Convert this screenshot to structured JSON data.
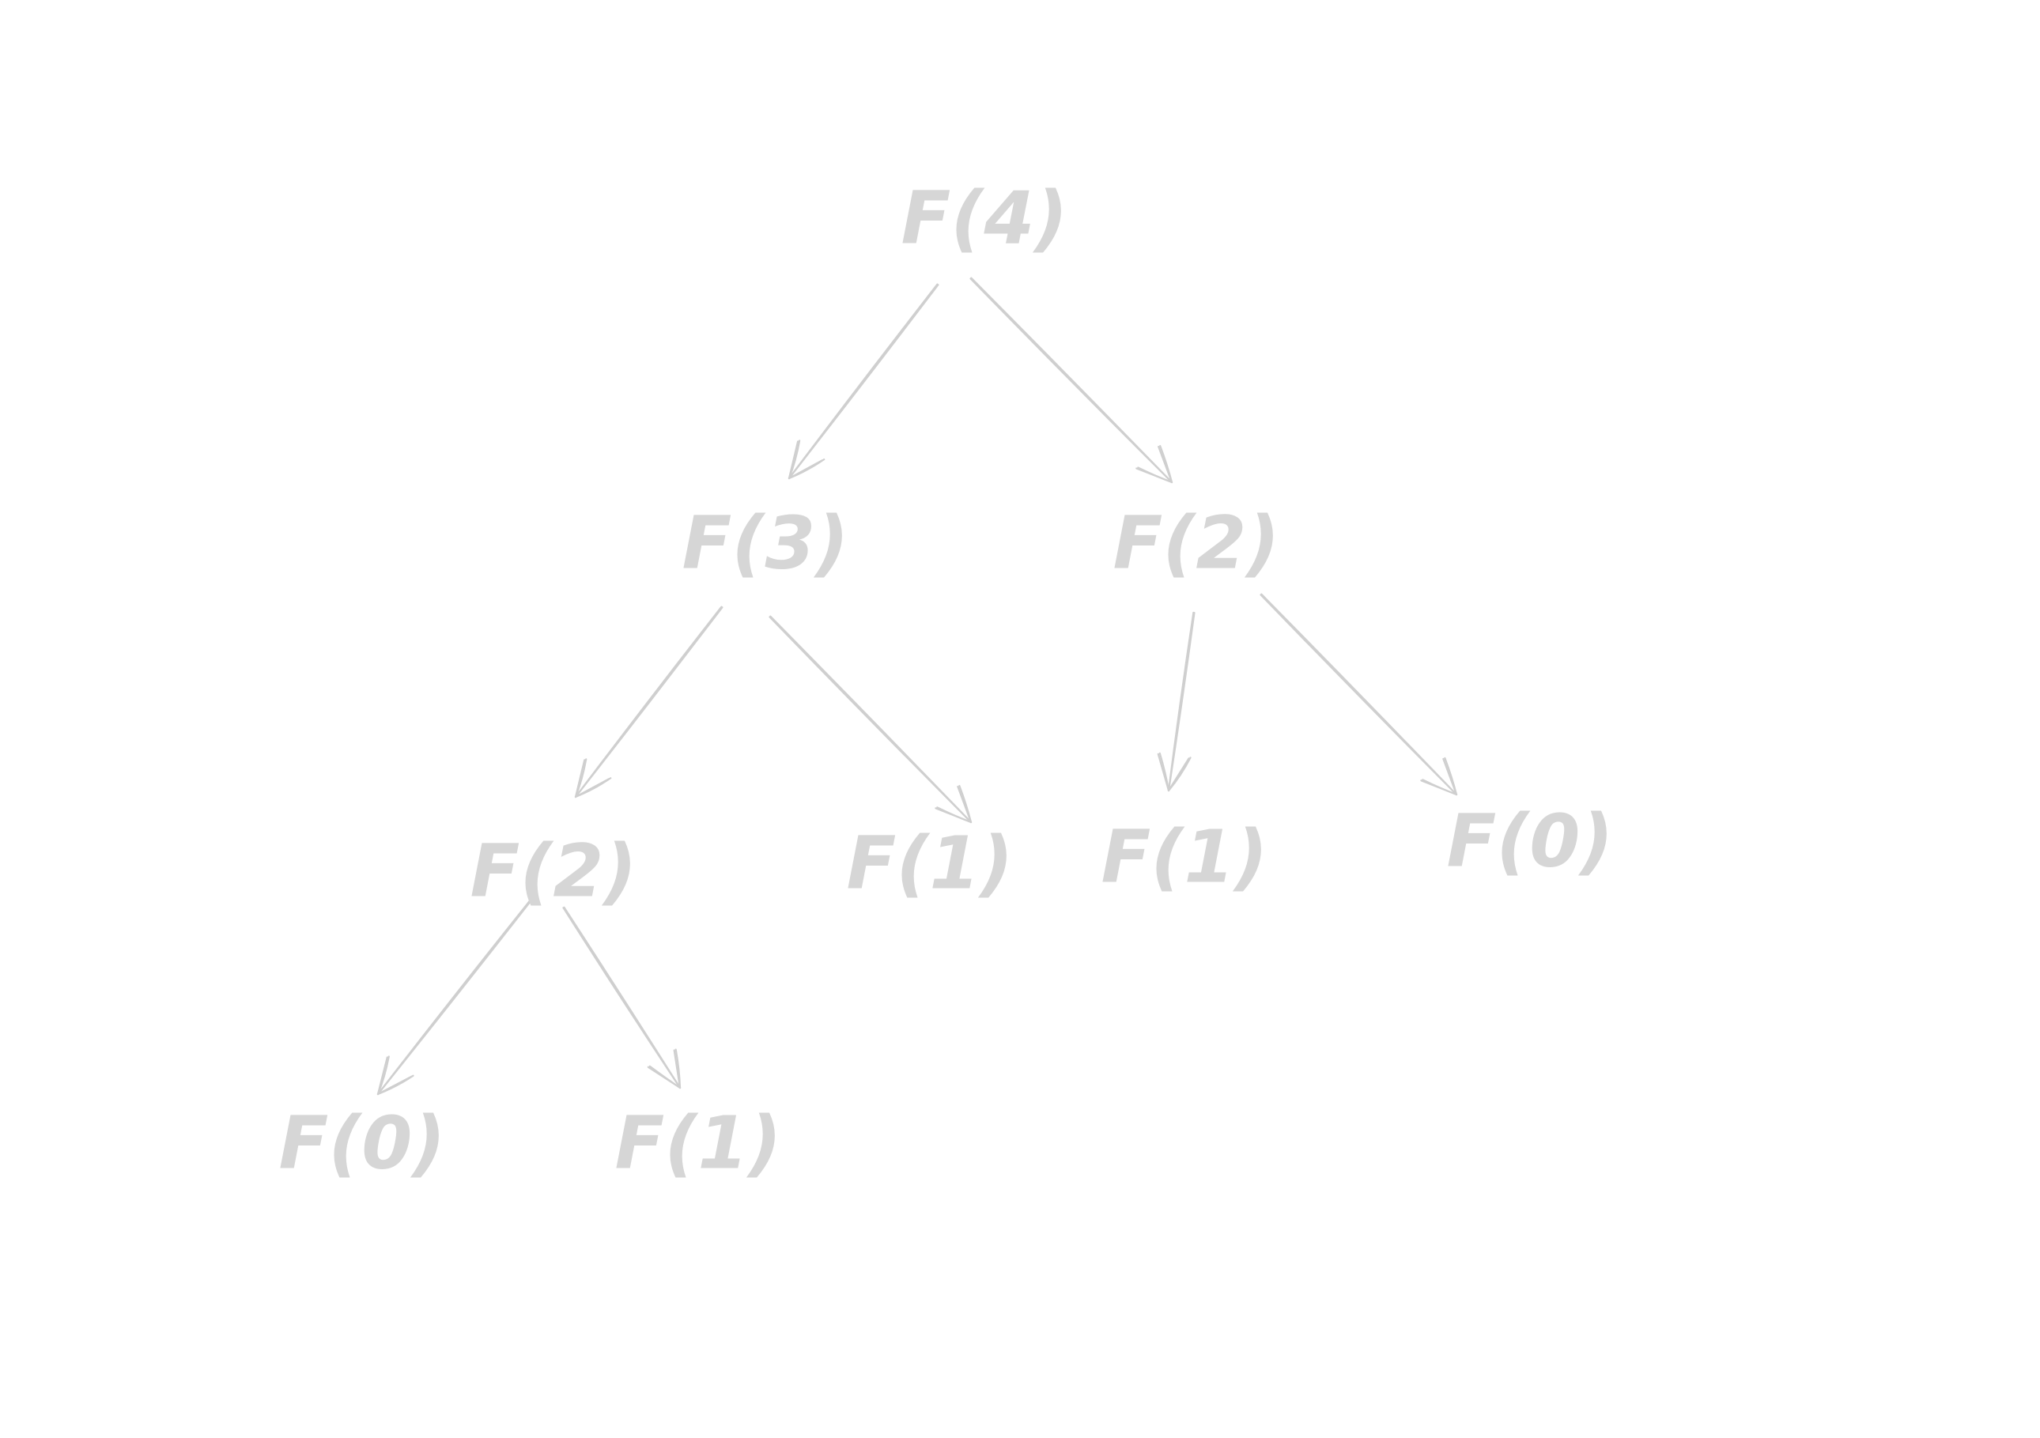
{
  "diagram": {
    "type": "tree",
    "nodes": [
      {
        "id": "n0",
        "label": "F(4)"
      },
      {
        "id": "n1",
        "label": "F(3)"
      },
      {
        "id": "n2",
        "label": "F(2)"
      },
      {
        "id": "n3",
        "label": "F(2)"
      },
      {
        "id": "n4",
        "label": "F(1)"
      },
      {
        "id": "n5",
        "label": "F(1)"
      },
      {
        "id": "n6",
        "label": "F(0)"
      },
      {
        "id": "n7",
        "label": "F(0)"
      },
      {
        "id": "n8",
        "label": "F(1)"
      }
    ],
    "edges": [
      {
        "from": "n0",
        "to": "n1"
      },
      {
        "from": "n0",
        "to": "n2"
      },
      {
        "from": "n1",
        "to": "n3"
      },
      {
        "from": "n1",
        "to": "n4"
      },
      {
        "from": "n2",
        "to": "n5"
      },
      {
        "from": "n2",
        "to": "n6"
      },
      {
        "from": "n3",
        "to": "n7"
      },
      {
        "from": "n3",
        "to": "n8"
      }
    ],
    "colors": {
      "text": "#d6d6d6",
      "edge": "#cfcfcf",
      "background": "#ffffff"
    }
  }
}
